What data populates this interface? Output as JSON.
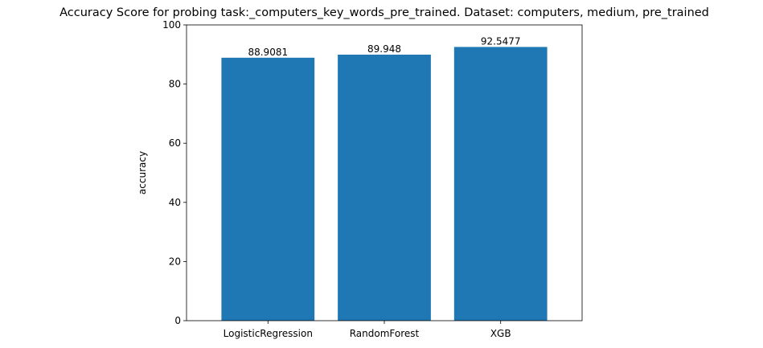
{
  "chart_data": {
    "type": "bar",
    "title": "Accuracy Score for probing task:_computers_key_words_pre_trained. Dataset: computers, medium, pre_trained",
    "xlabel": "",
    "ylabel": "accuracy",
    "categories": [
      "LogisticRegression",
      "RandomForest",
      "XGB"
    ],
    "values": [
      88.9081,
      89.948,
      92.5477
    ],
    "value_labels": [
      "88.9081",
      "89.948",
      "92.5477"
    ],
    "ylim": [
      0,
      100
    ],
    "yticks": [
      0,
      20,
      40,
      60,
      80,
      100
    ],
    "ytick_labels": [
      "0",
      "20",
      "40",
      "60",
      "80",
      "100"
    ],
    "bar_color": "#1f77b4",
    "grid": false,
    "legend": "none"
  }
}
